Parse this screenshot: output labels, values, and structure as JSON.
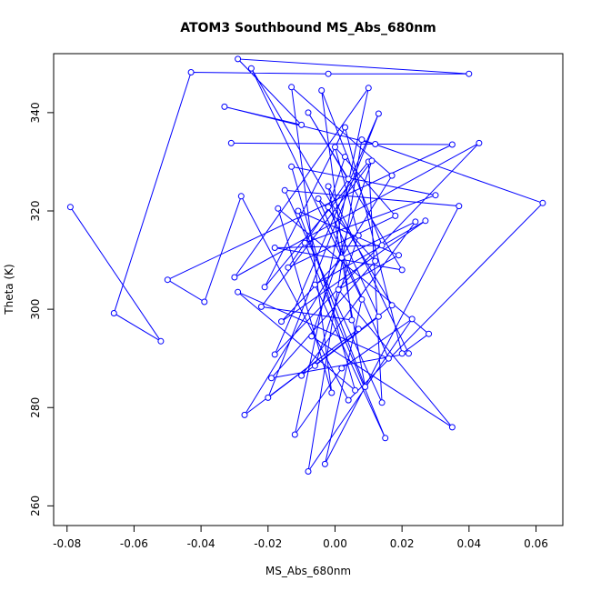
{
  "chart_data": {
    "type": "line",
    "title": "ATOM3 Southbound MS_Abs_680nm",
    "xlabel": "MS_Abs_680nm",
    "ylabel": "Theta (K)",
    "xlim": [
      -0.084,
      0.068
    ],
    "ylim": [
      256,
      352
    ],
    "x_ticks": [
      -0.08,
      -0.06,
      -0.04,
      -0.02,
      0.0,
      0.02,
      0.04,
      0.06
    ],
    "x_tick_labels": [
      "-0.08",
      "-0.06",
      "-0.04",
      "-0.02",
      "0.00",
      "0.02",
      "0.04",
      "0.06"
    ],
    "y_ticks": [
      260,
      280,
      300,
      320,
      340
    ],
    "y_tick_labels": [
      "260",
      "280",
      "300",
      "320",
      "340"
    ],
    "grid": false,
    "legend": "none",
    "series": [
      {
        "color": "#0000ff",
        "marker": "open-circle",
        "x": [
          -0.079,
          -0.052,
          -0.066,
          -0.043,
          -0.002,
          0.04,
          -0.029,
          -0.01,
          -0.033,
          0.012,
          -0.031,
          0.035,
          -0.05,
          -0.039,
          -0.028,
          0.004,
          0.062,
          0.008,
          -0.008,
          0.023,
          0.002,
          -0.012,
          0.01,
          -0.03,
          0.043,
          -0.018,
          0.013,
          -0.02,
          0.007,
          -0.027,
          0.017,
          -0.013,
          -0.001,
          -0.017,
          0.028,
          0.02,
          0.003,
          -0.021,
          0.01,
          0.014,
          -0.015,
          0.037,
          -0.003,
          0.008,
          -0.025,
          0.017,
          -0.01,
          0.024,
          0.002,
          -0.016,
          0.027,
          -0.006,
          0.015,
          -0.009,
          0.03,
          -0.013,
          0.006,
          -0.029,
          0.016,
          -0.005,
          0.012,
          -0.019,
          0.022,
          -0.002,
          0.009,
          -0.011,
          0.019,
          0.001,
          0.035,
          -0.007,
          0.011,
          -0.022,
          0.005,
          -0.004,
          0.014,
          -0.018,
          0.02,
          -0.008,
          0.004,
          -0.014,
          0.018,
          0.0,
          0.007,
          -0.006,
          0.013,
          -0.002,
          0.003
        ],
        "y": [
          320.8,
          293.5,
          299.2,
          348.2,
          347.9,
          347.9,
          350.9,
          337.5,
          341.2,
          333.6,
          333.8,
          333.5,
          306.0,
          301.5,
          323.0,
          281.5,
          321.6,
          334.5,
          267.0,
          298.0,
          288.0,
          274.5,
          345.0,
          306.5,
          333.8,
          290.8,
          339.8,
          282.0,
          296.0,
          278.5,
          327.2,
          345.2,
          283.0,
          320.5,
          295.0,
          291.0,
          337.0,
          304.5,
          330.0,
          281.0,
          324.2,
          321.0,
          268.5,
          302.0,
          349.0,
          300.8,
          286.5,
          317.8,
          310.5,
          297.5,
          318.0,
          305.0,
          273.8,
          313.5,
          323.2,
          329.0,
          283.5,
          303.5,
          290.0,
          322.5,
          309.8,
          286.0,
          291.0,
          325.0,
          284.2,
          320.0,
          311.0,
          304.0,
          276.0,
          294.5,
          330.2,
          300.5,
          297.8,
          344.5,
          313.0,
          312.5,
          308.0,
          340.0,
          326.5,
          308.5,
          319.0,
          333.0,
          315.0,
          288.5,
          298.5,
          320.8,
          331.0
        ]
      }
    ]
  }
}
